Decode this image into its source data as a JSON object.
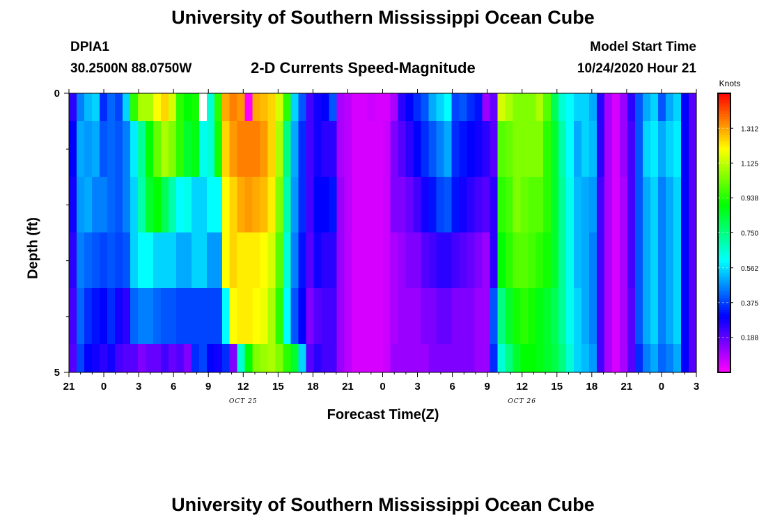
{
  "header": {
    "title": "University of Southern Mississippi Ocean Cube",
    "station": "DPIA1",
    "coords": "30.2500N 88.0750W",
    "subtitle": "2-D Currents Speed-Magnitude",
    "model_start_label": "Model Start Time",
    "model_start_value": "10/24/2020 Hour 21"
  },
  "footer": {
    "title": "University of Southern Mississippi Ocean Cube"
  },
  "chart_data": {
    "type": "heatmap",
    "xlabel": "Forecast Time(Z)",
    "ylabel": "Depth (ft)",
    "colorbar_label": "Knots",
    "x_start": "10/24/2020 21Z",
    "x_step_hours": 1,
    "x_ticks": [
      "21",
      "0",
      "3",
      "6",
      "9",
      "12",
      "15",
      "18",
      "21",
      "0",
      "3",
      "6",
      "9",
      "12",
      "15",
      "18",
      "21",
      "0",
      "3"
    ],
    "date_labels": [
      "OCT 25",
      "OCT 26"
    ],
    "y_ticks": [
      "0",
      "5"
    ],
    "ylim": [
      0,
      5
    ],
    "depths": [
      0.25,
      1.0,
      2.0,
      3.0,
      4.0,
      4.75
    ],
    "colorbar_ticks": [
      "1.312",
      "1.125",
      "0.938",
      "0.750",
      "0.562",
      "0.375",
      "0.188"
    ],
    "colorbar_range": [
      0,
      1.5
    ],
    "missing": [
      {
        "time_index": 17,
        "depth_index": 0
      }
    ],
    "values": [
      [
        0.25,
        0.45,
        0.52,
        0.55,
        0.35,
        0.42,
        0.38,
        0.55,
        0.95,
        1.1,
        1.1,
        1.2,
        1.25,
        1.15,
        0.95,
        0.9,
        0.92,
        0.6,
        0.65,
        0.95,
        1.3,
        1.35,
        1.32,
        0.0,
        1.3,
        1.28,
        1.25,
        1.15,
        0.95,
        0.55,
        0.4,
        0.22,
        0.28,
        0.3,
        0.4,
        0.1,
        0.08,
        0.05,
        0.05,
        0.06,
        0.05,
        0.05,
        0.1,
        0.25,
        0.3,
        0.35,
        0.4,
        0.5,
        0.55,
        0.6,
        0.38,
        0.4,
        0.35,
        0.32,
        0.12,
        0.18,
        1.15,
        1.1,
        1.05,
        1.05,
        1.05,
        1.1,
        1.0,
        0.8,
        0.65,
        0.6,
        0.55,
        0.55,
        0.5,
        0.25,
        0.1,
        0.05,
        0.12,
        0.25,
        0.4,
        0.5,
        0.55,
        0.4,
        0.5,
        0.55,
        0.3,
        0.2
      ],
      [
        0.3,
        0.5,
        0.48,
        0.5,
        0.4,
        0.42,
        0.4,
        0.45,
        0.58,
        0.72,
        0.9,
        1.02,
        1.1,
        1.05,
        0.95,
        0.85,
        0.88,
        0.62,
        0.65,
        0.92,
        1.25,
        1.32,
        1.35,
        1.35,
        1.35,
        1.32,
        1.25,
        1.1,
        0.75,
        0.5,
        0.35,
        0.22,
        0.28,
        0.25,
        0.25,
        0.1,
        0.08,
        0.05,
        0.05,
        0.05,
        0.05,
        0.06,
        0.15,
        0.2,
        0.25,
        0.3,
        0.35,
        0.4,
        0.45,
        0.5,
        0.35,
        0.32,
        0.3,
        0.28,
        0.25,
        0.2,
        1.0,
        1.02,
        1.05,
        1.05,
        1.05,
        1.05,
        0.95,
        0.85,
        0.7,
        0.6,
        0.5,
        0.55,
        0.52,
        0.25,
        0.1,
        0.05,
        0.12,
        0.22,
        0.4,
        0.55,
        0.58,
        0.5,
        0.55,
        0.58,
        0.3,
        0.2
      ],
      [
        0.28,
        0.48,
        0.5,
        0.45,
        0.45,
        0.42,
        0.4,
        0.45,
        0.55,
        0.7,
        0.85,
        0.9,
        0.8,
        0.7,
        0.6,
        0.62,
        0.55,
        0.55,
        0.6,
        0.6,
        1.2,
        1.25,
        1.3,
        1.32,
        1.3,
        1.28,
        1.22,
        1.05,
        0.7,
        0.48,
        0.35,
        0.22,
        0.3,
        0.3,
        0.32,
        0.12,
        0.08,
        0.05,
        0.05,
        0.05,
        0.05,
        0.06,
        0.15,
        0.15,
        0.18,
        0.22,
        0.28,
        0.32,
        0.38,
        0.4,
        0.32,
        0.28,
        0.25,
        0.22,
        0.2,
        0.25,
        0.95,
        0.98,
        1.05,
        1.02,
        1.0,
        1.0,
        0.95,
        0.85,
        0.72,
        0.62,
        0.52,
        0.5,
        0.48,
        0.22,
        0.1,
        0.05,
        0.1,
        0.22,
        0.4,
        0.5,
        0.55,
        0.45,
        0.5,
        0.55,
        0.3,
        0.2
      ],
      [
        0.25,
        0.45,
        0.42,
        0.4,
        0.38,
        0.4,
        0.38,
        0.4,
        0.55,
        0.6,
        0.6,
        0.55,
        0.55,
        0.55,
        0.5,
        0.5,
        0.55,
        0.55,
        0.48,
        0.48,
        1.2,
        1.25,
        1.22,
        1.22,
        1.22,
        1.2,
        1.15,
        1.0,
        0.65,
        0.45,
        0.32,
        0.2,
        0.28,
        0.25,
        0.25,
        0.12,
        0.08,
        0.05,
        0.05,
        0.05,
        0.05,
        0.06,
        0.1,
        0.12,
        0.15,
        0.15,
        0.2,
        0.22,
        0.25,
        0.25,
        0.22,
        0.2,
        0.18,
        0.15,
        0.12,
        0.25,
        0.9,
        0.95,
        1.0,
        1.0,
        0.98,
        0.95,
        0.92,
        0.85,
        0.72,
        0.62,
        0.52,
        0.5,
        0.45,
        0.22,
        0.1,
        0.05,
        0.1,
        0.22,
        0.4,
        0.5,
        0.55,
        0.45,
        0.5,
        0.55,
        0.3,
        0.2
      ],
      [
        0.22,
        0.42,
        0.35,
        0.32,
        0.3,
        0.35,
        0.28,
        0.25,
        0.42,
        0.45,
        0.45,
        0.42,
        0.4,
        0.4,
        0.38,
        0.38,
        0.38,
        0.38,
        0.38,
        0.38,
        0.6,
        1.2,
        1.22,
        1.22,
        1.2,
        1.18,
        1.1,
        0.95,
        0.6,
        0.4,
        0.3,
        0.15,
        0.2,
        0.22,
        0.22,
        0.12,
        0.08,
        0.05,
        0.05,
        0.05,
        0.05,
        0.06,
        0.1,
        0.12,
        0.12,
        0.12,
        0.15,
        0.15,
        0.18,
        0.18,
        0.15,
        0.15,
        0.15,
        0.12,
        0.12,
        0.4,
        0.75,
        0.85,
        0.92,
        0.95,
        0.92,
        0.88,
        0.85,
        0.8,
        0.72,
        0.62,
        0.55,
        0.5,
        0.45,
        0.22,
        0.1,
        0.05,
        0.1,
        0.2,
        0.4,
        0.5,
        0.55,
        0.45,
        0.5,
        0.55,
        0.3,
        0.2
      ],
      [
        0.2,
        0.38,
        0.3,
        0.28,
        0.25,
        0.28,
        0.22,
        0.2,
        0.2,
        0.15,
        0.18,
        0.18,
        0.22,
        0.18,
        0.2,
        0.15,
        0.35,
        0.38,
        0.3,
        0.28,
        0.35,
        0.15,
        0.65,
        0.9,
        1.05,
        1.08,
        1.1,
        1.05,
        0.95,
        0.85,
        0.55,
        0.2,
        0.25,
        0.22,
        0.22,
        0.12,
        0.08,
        0.05,
        0.05,
        0.05,
        0.05,
        0.06,
        0.12,
        0.12,
        0.12,
        0.12,
        0.12,
        0.15,
        0.15,
        0.15,
        0.15,
        0.15,
        0.15,
        0.12,
        0.12,
        0.35,
        0.65,
        0.75,
        0.85,
        0.9,
        0.9,
        0.88,
        0.85,
        0.82,
        0.75,
        0.65,
        0.55,
        0.52,
        0.48,
        0.22,
        0.1,
        0.05,
        0.1,
        0.2,
        0.35,
        0.45,
        0.5,
        0.42,
        0.45,
        0.5,
        0.3,
        0.2
      ]
    ]
  }
}
